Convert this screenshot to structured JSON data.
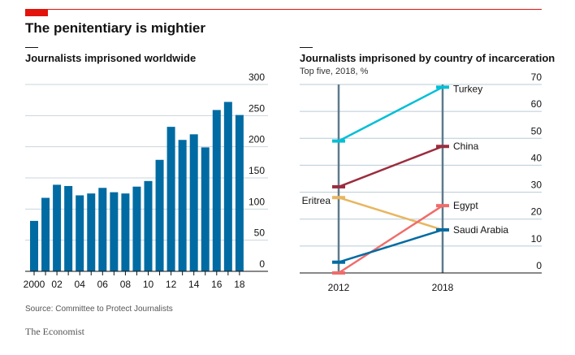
{
  "headline": "The penitentiary is mightier",
  "source": "Source: Committee to Protect Journalists",
  "brand": "The Economist",
  "colors": {
    "accent_red": "#e3120b",
    "bar_blue": "#006ba2",
    "axis_grey": "#5e7a8c",
    "grid": "#b8cbd6"
  },
  "chart_data": [
    {
      "type": "bar",
      "title": "Journalists imprisoned worldwide",
      "categories": [
        "2000",
        "2001",
        "02",
        "2003",
        "04",
        "2005",
        "06",
        "2007",
        "08",
        "2009",
        "10",
        "2011",
        "12",
        "2013",
        "14",
        "2015",
        "16",
        "2017",
        "18"
      ],
      "tick_labels": [
        "2000",
        "",
        "02",
        "",
        "04",
        "",
        "06",
        "",
        "08",
        "",
        "10",
        "",
        "12",
        "",
        "14",
        "",
        "16",
        "",
        "18"
      ],
      "values": [
        81,
        118,
        139,
        137,
        122,
        125,
        134,
        127,
        125,
        136,
        145,
        179,
        232,
        211,
        220,
        199,
        259,
        272,
        251
      ],
      "ylim": [
        0,
        300
      ],
      "yticks": [
        0,
        50,
        100,
        150,
        200,
        250,
        300
      ],
      "grid": true
    },
    {
      "type": "line",
      "title": "Journalists imprisoned by country of incarceration",
      "subtitle": "Top five, 2018, %",
      "x": [
        "2012",
        "2018"
      ],
      "ylim": [
        0,
        70
      ],
      "yticks": [
        0,
        10,
        20,
        30,
        40,
        50,
        60,
        70
      ],
      "grid": true,
      "series": [
        {
          "name": "Turkey",
          "values": [
            49,
            69
          ],
          "color": "#00bfd6"
        },
        {
          "name": "China",
          "values": [
            32,
            47
          ],
          "color": "#9b2d3f"
        },
        {
          "name": "Eritrea",
          "values": [
            28,
            16
          ],
          "color": "#e8b660"
        },
        {
          "name": "Egypt",
          "values": [
            0,
            25
          ],
          "color": "#f06c6a"
        },
        {
          "name": "Saudi Arabia",
          "values": [
            4,
            16
          ],
          "color": "#006ba2"
        }
      ]
    }
  ]
}
